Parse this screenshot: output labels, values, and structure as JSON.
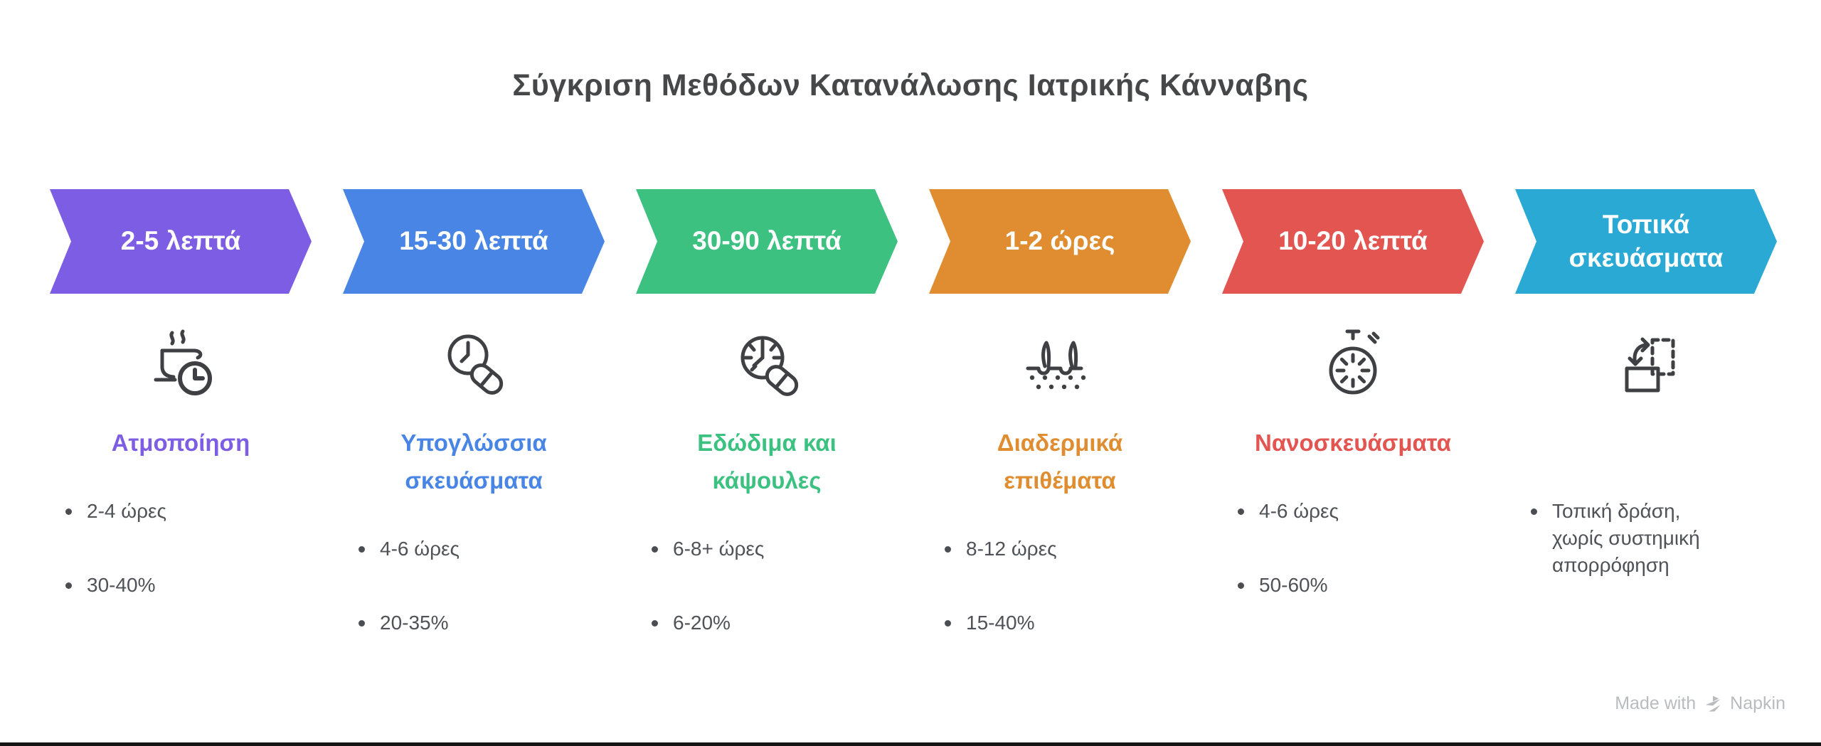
{
  "title": "Σύγκριση Μεθόδων Κατανάλωσης Ιατρικής Κάνναβης",
  "methods": [
    {
      "banner": "2-5 λεπτά",
      "color": "#7C5DE3",
      "icon": "cup-steam-clock-icon",
      "heading": "Ατμοποίηση",
      "bullets": [
        "2-4 ώρες",
        "30-40%"
      ]
    },
    {
      "banner": "15-30 λεπτά",
      "color": "#4885E5",
      "icon": "clock-pill-icon",
      "heading": "Υπογλώσσια σκευάσματα",
      "bullets": [
        "4-6 ώρες",
        "20-35%"
      ]
    },
    {
      "banner": "30-90 λεπτά",
      "color": "#3DC181",
      "icon": "watchface-pill-icon",
      "heading": "Εδώδιμα και κάψουλες",
      "bullets": [
        "6-8+ ώρες",
        "6-20%"
      ]
    },
    {
      "banner": "1-2 ώρες",
      "color": "#DF8D30",
      "icon": "skin-hairs-icon",
      "heading": "Διαδερμικά επιθέματα",
      "bullets": [
        "8-12 ώρες",
        "15-40%"
      ]
    },
    {
      "banner": "10-20 λεπτά",
      "color": "#E25551",
      "icon": "stopwatch-icon",
      "heading": "Νανοσκευάσματα",
      "bullets": [
        "4-6 ώρες",
        "50-60%"
      ]
    },
    {
      "banner": "Τοπικά σκευάσματα",
      "color": "#29A9D4",
      "icon": "topical-transform-icon",
      "heading": "",
      "bullets": [
        "Τοπική δράση, χωρίς συστημική απορρόφηση"
      ]
    }
  ],
  "footer": {
    "made_with": "Made with",
    "brand": "Napkin"
  },
  "palette": {
    "title_text": "#454749",
    "body_text": "#4F5357",
    "icon_stroke": "#3E4043",
    "footer_text": "#B9BCBE",
    "bottom_bar": "#151515"
  }
}
